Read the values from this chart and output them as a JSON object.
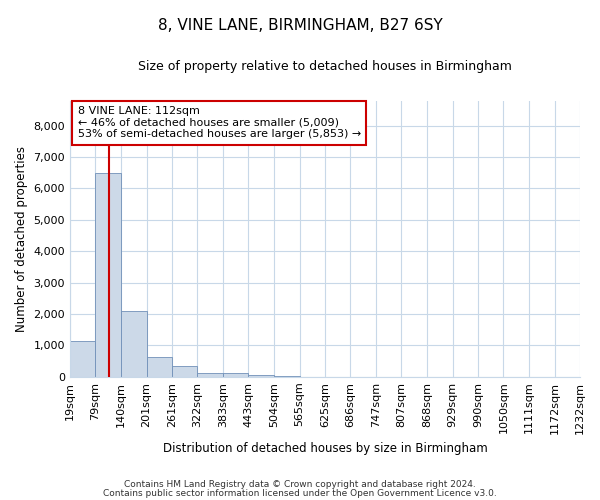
{
  "title": "8, VINE LANE, BIRMINGHAM, B27 6SY",
  "subtitle": "Size of property relative to detached houses in Birmingham",
  "xlabel": "Distribution of detached houses by size in Birmingham",
  "ylabel": "Number of detached properties",
  "annotation_line1": "8 VINE LANE: 112sqm",
  "annotation_line2": "← 46% of detached houses are smaller (5,009)",
  "annotation_line3": "53% of semi-detached houses are larger (5,853) →",
  "property_size_sqm": 112,
  "bar_color": "#ccd9e8",
  "bar_edge_color": "#7090b8",
  "vline_color": "#cc0000",
  "annotation_box_color": "#ffffff",
  "annotation_box_edge": "#cc0000",
  "background_color": "#ffffff",
  "grid_color": "#c8d8e8",
  "footnote1": "Contains HM Land Registry data © Crown copyright and database right 2024.",
  "footnote2": "Contains public sector information licensed under the Open Government Licence v3.0.",
  "bins": [
    19,
    79,
    140,
    201,
    261,
    322,
    383,
    443,
    504,
    565,
    625,
    686,
    747,
    807,
    868,
    929,
    990,
    1050,
    1111,
    1172,
    1232
  ],
  "bin_labels": [
    "19sqm",
    "79sqm",
    "140sqm",
    "201sqm",
    "261sqm",
    "322sqm",
    "383sqm",
    "443sqm",
    "504sqm",
    "565sqm",
    "625sqm",
    "686sqm",
    "747sqm",
    "807sqm",
    "868sqm",
    "929sqm",
    "990sqm",
    "1050sqm",
    "1111sqm",
    "1172sqm",
    "1232sqm"
  ],
  "counts": [
    1150,
    6500,
    2100,
    620,
    330,
    130,
    110,
    55,
    10,
    0,
    0,
    0,
    0,
    0,
    0,
    0,
    0,
    0,
    0,
    0
  ],
  "ylim": [
    0,
    8800
  ],
  "yticks": [
    0,
    1000,
    2000,
    3000,
    4000,
    5000,
    6000,
    7000,
    8000
  ]
}
